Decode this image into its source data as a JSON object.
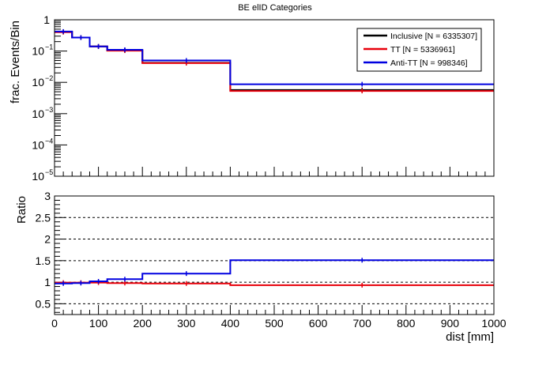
{
  "chart_data": [
    {
      "type": "line",
      "title": "BE elID Categories",
      "ylabel": "frac. Events/Bin",
      "yscale": "log",
      "ylim": [
        1e-05,
        1
      ],
      "xlim": [
        0,
        1000
      ],
      "x_edges": [
        0,
        40,
        80,
        120,
        200,
        400,
        1000
      ],
      "y_ticks": [
        {
          "value": 1,
          "base": "1",
          "exp": ""
        },
        {
          "value": 0.1,
          "base": "10",
          "exp": "−1"
        },
        {
          "value": 0.01,
          "base": "10",
          "exp": "−2"
        },
        {
          "value": 0.001,
          "base": "10",
          "exp": "−3"
        },
        {
          "value": 0.0001,
          "base": "10",
          "exp": "−4"
        },
        {
          "value": 1e-05,
          "base": "10",
          "exp": "−5"
        }
      ],
      "legend_position": "top-right",
      "series": [
        {
          "name": "Inclusive [N = 6335307]",
          "color": "#000000",
          "values": [
            0.41,
            0.27,
            0.14,
            0.105,
            0.042,
            0.0057
          ]
        },
        {
          "name": "TT [N = 5336961]",
          "color": "#e8000b",
          "values": [
            0.4,
            0.27,
            0.14,
            0.103,
            0.041,
            0.0053
          ]
        },
        {
          "name": "Anti-TT [N = 998346]",
          "color": "#0000e0",
          "values": [
            0.42,
            0.27,
            0.14,
            0.11,
            0.05,
            0.0087
          ]
        }
      ]
    },
    {
      "type": "line",
      "xlabel": "dist [mm]",
      "ylabel": "Ratio",
      "xlim": [
        0,
        1000
      ],
      "ylim": [
        0.25,
        3
      ],
      "x_edges": [
        0,
        40,
        80,
        120,
        200,
        400,
        1000
      ],
      "x_ticks": [
        {
          "value": 0,
          "label": "0"
        },
        {
          "value": 100,
          "label": "100"
        },
        {
          "value": 200,
          "label": "200"
        },
        {
          "value": 300,
          "label": "300"
        },
        {
          "value": 400,
          "label": "400"
        },
        {
          "value": 500,
          "label": "500"
        },
        {
          "value": 600,
          "label": "600"
        },
        {
          "value": 700,
          "label": "700"
        },
        {
          "value": 800,
          "label": "800"
        },
        {
          "value": 900,
          "label": "900"
        },
        {
          "value": 1000,
          "label": "1000"
        }
      ],
      "y_ticks": [
        {
          "value": 0.5,
          "label": "0.5"
        },
        {
          "value": 1,
          "label": "1"
        },
        {
          "value": 1.5,
          "label": "1.5"
        },
        {
          "value": 2,
          "label": "2"
        },
        {
          "value": 2.5,
          "label": "2.5"
        },
        {
          "value": 3,
          "label": "3"
        }
      ],
      "gridlines": [
        0.5,
        1,
        1.5,
        2,
        2.5
      ],
      "series": [
        {
          "color": "#e8000b",
          "values": [
            0.99,
            0.99,
            0.99,
            0.98,
            0.97,
            0.93
          ]
        },
        {
          "color": "#0000e0",
          "values": [
            0.97,
            0.98,
            1.02,
            1.07,
            1.2,
            1.51
          ]
        }
      ]
    }
  ]
}
